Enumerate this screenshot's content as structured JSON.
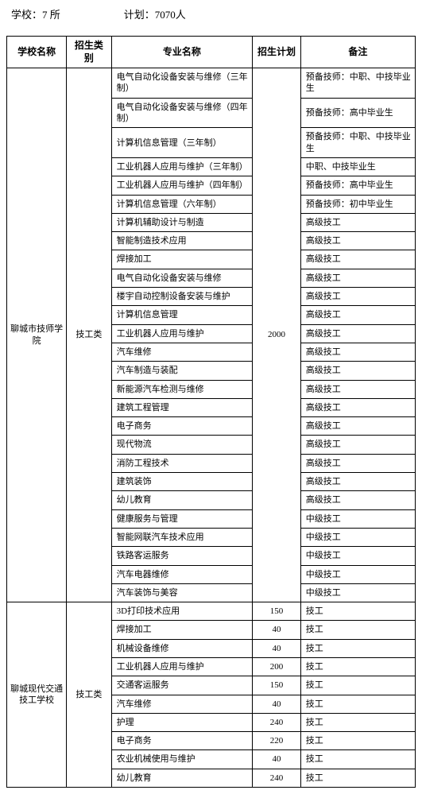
{
  "header": {
    "schools_label": "学校：7 所",
    "plan_label": "计划：7070人"
  },
  "columns": {
    "school": "学校名称",
    "category": "招生类别",
    "major": "专业名称",
    "plan": "招生计划",
    "note": "备注"
  },
  "group1": {
    "school": "聊城市技师学院",
    "category": "技工类",
    "plan": "2000",
    "rows": [
      {
        "major": "电气自动化设备安装与维修（三年制）",
        "note": "预备技师：中职、中技毕业生"
      },
      {
        "major": "电气自动化设备安装与维修（四年制）",
        "note": "预备技师：高中毕业生"
      },
      {
        "major": "计算机信息管理（三年制）",
        "note": "预备技师：中职、中技毕业生"
      },
      {
        "major": "工业机器人应用与维护（三年制）",
        "note": "中职、中技毕业生"
      },
      {
        "major": "工业机器人应用与维护（四年制）",
        "note": "预备技师：高中毕业生"
      },
      {
        "major": "计算机信息管理（六年制）",
        "note": "预备技师：初中毕业生"
      },
      {
        "major": "计算机辅助设计与制造",
        "note": "高级技工"
      },
      {
        "major": "智能制造技术应用",
        "note": "高级技工"
      },
      {
        "major": "焊接加工",
        "note": "高级技工"
      },
      {
        "major": "电气自动化设备安装与维修",
        "note": "高级技工"
      },
      {
        "major": "楼宇自动控制设备安装与维护",
        "note": "高级技工"
      },
      {
        "major": "计算机信息管理",
        "note": "高级技工"
      },
      {
        "major": "工业机器人应用与维护",
        "note": "高级技工"
      },
      {
        "major": "汽车维修",
        "note": "高级技工"
      },
      {
        "major": "汽车制造与装配",
        "note": "高级技工"
      },
      {
        "major": "新能源汽车检测与维修",
        "note": "高级技工"
      },
      {
        "major": "建筑工程管理",
        "note": "高级技工"
      },
      {
        "major": "电子商务",
        "note": "高级技工"
      },
      {
        "major": "现代物流",
        "note": "高级技工"
      },
      {
        "major": "消防工程技术",
        "note": "高级技工"
      },
      {
        "major": "建筑装饰",
        "note": "高级技工"
      },
      {
        "major": "幼儿教育",
        "note": "高级技工"
      },
      {
        "major": "健康服务与管理",
        "note": "中级技工"
      },
      {
        "major": "智能网联汽车技术应用",
        "note": "中级技工"
      },
      {
        "major": "铁路客运服务",
        "note": "中级技工"
      },
      {
        "major": "汽车电器维修",
        "note": "中级技工"
      },
      {
        "major": "汽车装饰与美容",
        "note": "中级技工"
      }
    ]
  },
  "group2": {
    "school": "聊城现代交通技工学校",
    "category": "技工类",
    "rows": [
      {
        "major": "3D打印技术应用",
        "plan": "150",
        "note": "技工"
      },
      {
        "major": "焊接加工",
        "plan": "40",
        "note": "技工"
      },
      {
        "major": "机械设备维修",
        "plan": "40",
        "note": "技工"
      },
      {
        "major": "工业机器人应用与维护",
        "plan": "200",
        "note": "技工"
      },
      {
        "major": "交通客运服务",
        "plan": "150",
        "note": "技工"
      },
      {
        "major": "汽车维修",
        "plan": "40",
        "note": "技工"
      },
      {
        "major": "护理",
        "plan": "240",
        "note": "技工"
      },
      {
        "major": "电子商务",
        "plan": "220",
        "note": "技工"
      },
      {
        "major": "农业机械使用与维护",
        "plan": "40",
        "note": "技工"
      },
      {
        "major": "幼儿教育",
        "plan": "240",
        "note": "技工"
      }
    ]
  }
}
